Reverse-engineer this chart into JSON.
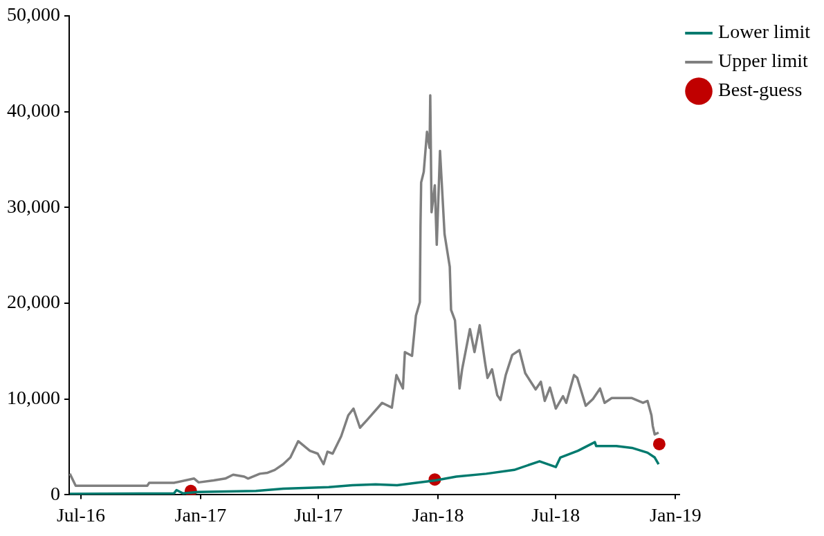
{
  "chart_data": {
    "type": "line",
    "xlim": [
      "2016-06-13",
      "2019-01-07"
    ],
    "xticks": [
      {
        "value": "2016-07",
        "label": "Jul-16"
      },
      {
        "value": "2017-01",
        "label": "Jan-17"
      },
      {
        "value": "2017-07",
        "label": "Jul-17"
      },
      {
        "value": "2018-01",
        "label": "Jan-18"
      },
      {
        "value": "2018-07",
        "label": "Jul-18"
      },
      {
        "value": "2019-01",
        "label": "Jan-19"
      }
    ],
    "ylim": [
      0,
      50000
    ],
    "yticks": [
      {
        "value": 0,
        "label": "0"
      },
      {
        "value": 10000,
        "label": "10,000"
      },
      {
        "value": 20000,
        "label": "20,000"
      },
      {
        "value": 30000,
        "label": "30,000"
      },
      {
        "value": 40000,
        "label": "40,000"
      },
      {
        "value": 50000,
        "label": "50,000"
      }
    ],
    "grid": false,
    "legend": "top right",
    "series": [
      {
        "name": "Lower limit",
        "color": "#007a6e",
        "x": [
          "2016-06-14",
          "2016-11-21",
          "2016-11-25",
          "2016-12-05",
          "2016-12-29",
          "2017-03-27",
          "2017-05-08",
          "2017-07-17",
          "2017-08-22",
          "2017-09-27",
          "2017-10-30",
          "2017-12-28",
          "2018-01-29",
          "2018-03-16",
          "2018-04-28",
          "2018-06-06",
          "2018-07-01",
          "2018-07-08",
          "2018-08-04",
          "2018-08-30",
          "2018-09-01",
          "2018-10-02",
          "2018-10-26",
          "2018-11-19",
          "2018-11-30",
          "2018-12-06"
        ],
        "values": [
          100,
          150,
          500,
          150,
          300,
          400,
          650,
          800,
          1000,
          1100,
          1000,
          1500,
          1900,
          2200,
          2600,
          3500,
          2900,
          3900,
          4600,
          5500,
          5100,
          5100,
          4900,
          4400,
          3900,
          3200
        ]
      },
      {
        "name": "Upper limit",
        "color": "#7f7f7f",
        "x": [
          "2016-06-14",
          "2016-06-23",
          "2016-10-11",
          "2016-10-14",
          "2016-11-21",
          "2016-12-22",
          "2016-12-29",
          "2017-01-21",
          "2017-02-08",
          "2017-02-20",
          "2017-03-09",
          "2017-03-15",
          "2017-04-02",
          "2017-04-14",
          "2017-04-25",
          "2017-05-08",
          "2017-05-19",
          "2017-05-31",
          "2017-06-18",
          "2017-06-30",
          "2017-07-09",
          "2017-07-15",
          "2017-07-23",
          "2017-08-05",
          "2017-08-16",
          "2017-08-24",
          "2017-09-03",
          "2017-09-15",
          "2017-10-07",
          "2017-10-22",
          "2017-10-29",
          "2017-11-08",
          "2017-11-11",
          "2017-11-22",
          "2017-11-28",
          "2017-12-04",
          "2017-12-05",
          "2017-12-06",
          "2017-12-10",
          "2017-12-15",
          "2017-12-19",
          "2017-12-20",
          "2017-12-22",
          "2017-12-27",
          "2017-12-30",
          "2018-01-04",
          "2018-01-11",
          "2018-01-19",
          "2018-01-21",
          "2018-01-27",
          "2018-02-03",
          "2018-02-07",
          "2018-02-19",
          "2018-02-26",
          "2018-03-06",
          "2018-03-14",
          "2018-03-18",
          "2018-03-25",
          "2018-04-02",
          "2018-04-07",
          "2018-04-15",
          "2018-04-25",
          "2018-05-06",
          "2018-05-15",
          "2018-05-31",
          "2018-06-08",
          "2018-06-14",
          "2018-06-22",
          "2018-07-01",
          "2018-07-12",
          "2018-07-17",
          "2018-07-29",
          "2018-08-03",
          "2018-08-16",
          "2018-08-27",
          "2018-09-07",
          "2018-09-14",
          "2018-09-25",
          "2018-10-26",
          "2018-11-12",
          "2018-11-19",
          "2018-11-25",
          "2018-11-27",
          "2018-11-30",
          "2018-12-06"
        ],
        "values": [
          2200,
          950,
          950,
          1250,
          1250,
          1700,
          1300,
          1500,
          1700,
          2100,
          1900,
          1700,
          2200,
          2300,
          2600,
          3200,
          3900,
          5600,
          4600,
          4300,
          3200,
          4500,
          4300,
          6100,
          8300,
          9000,
          7000,
          7900,
          9600,
          9100,
          12500,
          11100,
          14900,
          14500,
          18700,
          20100,
          28000,
          32600,
          33700,
          37900,
          36200,
          41700,
          29500,
          32300,
          26100,
          35900,
          27200,
          23800,
          19300,
          18200,
          11100,
          13100,
          17300,
          14900,
          17700,
          13900,
          12200,
          13100,
          10400,
          9900,
          12500,
          14600,
          15100,
          12700,
          11000,
          11800,
          9800,
          11200,
          9000,
          10300,
          9600,
          12500,
          12200,
          9300,
          10000,
          11100,
          9600,
          10100,
          10100,
          9600,
          9800,
          8300,
          7200,
          6300,
          6500
        ]
      },
      {
        "name": "Best-guess",
        "type": "scatter",
        "marker": "circle",
        "color": "#c00000",
        "x": [
          "2016-12-17",
          "2017-12-27",
          "2018-12-07"
        ],
        "values": [
          400,
          1600,
          5300
        ]
      }
    ]
  }
}
